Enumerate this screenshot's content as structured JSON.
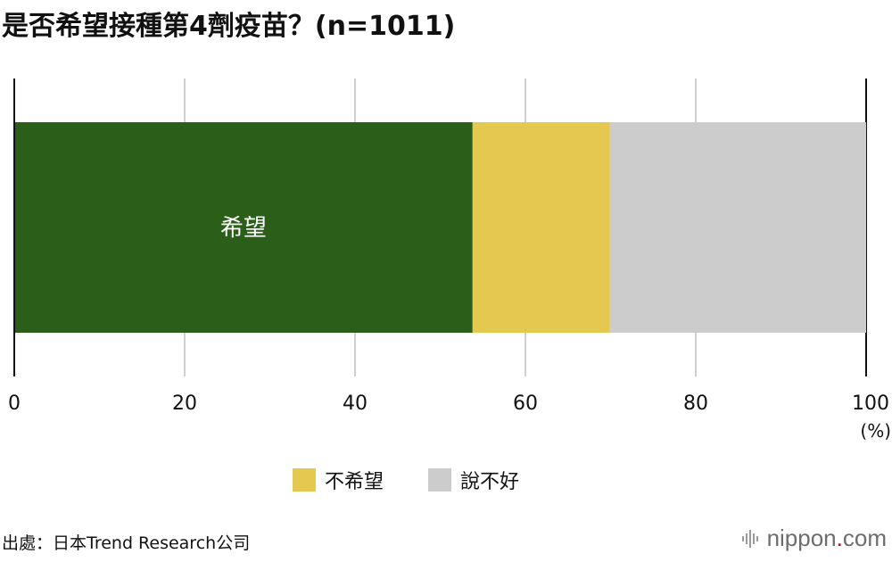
{
  "title": "是否希望接種第4劑疫苗？(n=1011)",
  "chart_data": {
    "type": "bar",
    "orientation": "horizontal",
    "stacked": true,
    "series": [
      {
        "name": "希望",
        "values": [
          53.8
        ],
        "color": "#2b5f19"
      },
      {
        "name": "不希望",
        "values": [
          16.1
        ],
        "color": "#e5c84f"
      },
      {
        "name": "說不好",
        "values": [
          30.1
        ],
        "color": "#cccccc"
      }
    ],
    "xlim": [
      0,
      100
    ],
    "xticks": [
      "0",
      "20",
      "40",
      "60",
      "80",
      "100"
    ],
    "xunit": "(%)",
    "grid": true,
    "inbar_label": "希望",
    "legend": {
      "placement": "bottom",
      "entries": [
        {
          "label": "不希望",
          "color": "#e5c84f"
        },
        {
          "label": "說不好",
          "color": "#cccccc"
        }
      ]
    }
  },
  "source": "出處：日本Trend Research公司",
  "brand": {
    "name": "nippon",
    "dot": ".",
    "tld": "com"
  }
}
